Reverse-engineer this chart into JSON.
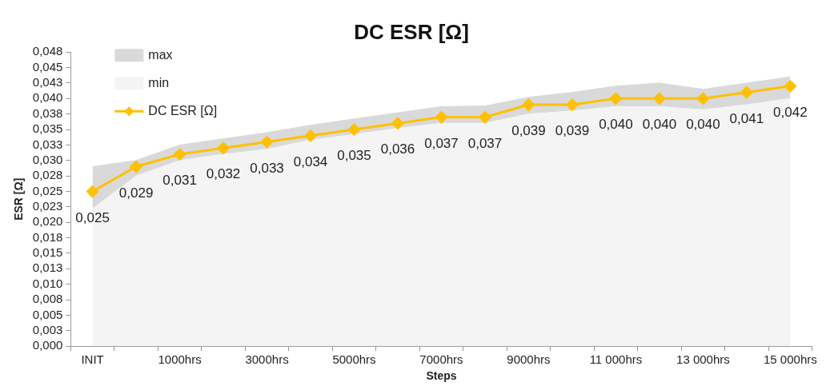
{
  "chart_data": {
    "type": "line",
    "title": "DC ESR [Ω]",
    "xlabel": "Steps",
    "ylabel": "ESR [Ω]",
    "categories": [
      "INIT",
      null,
      "1000hrs",
      null,
      "3000hrs",
      null,
      "5000hrs",
      null,
      "7000hrs",
      null,
      "9000hrs",
      null,
      "11 000hrs",
      null,
      "13 000hrs",
      null,
      "15 000hrs"
    ],
    "ylim": [
      0,
      0.0475
    ],
    "yticks": [
      {
        "value": 0,
        "label": "0,000"
      },
      {
        "value": 0.0025,
        "label": "0,003"
      },
      {
        "value": 0.005,
        "label": "0,005"
      },
      {
        "value": 0.0075,
        "label": "0,008"
      },
      {
        "value": 0.01,
        "label": "0,010"
      },
      {
        "value": 0.0125,
        "label": "0,013"
      },
      {
        "value": 0.015,
        "label": "0,015"
      },
      {
        "value": 0.0175,
        "label": "0,018"
      },
      {
        "value": 0.02,
        "label": "0,020"
      },
      {
        "value": 0.0225,
        "label": "0,023"
      },
      {
        "value": 0.025,
        "label": "0,025"
      },
      {
        "value": 0.0275,
        "label": "0,028"
      },
      {
        "value": 0.03,
        "label": "0,030"
      },
      {
        "value": 0.0325,
        "label": "0,033"
      },
      {
        "value": 0.035,
        "label": "0,035"
      },
      {
        "value": 0.0375,
        "label": "0,038"
      },
      {
        "value": 0.04,
        "label": "0,040"
      },
      {
        "value": 0.0425,
        "label": "0,043"
      },
      {
        "value": 0.045,
        "label": "0,045"
      },
      {
        "value": 0.0475,
        "label": "0,048"
      }
    ],
    "grid": false,
    "legend": "top left",
    "series": [
      {
        "name": "max",
        "type": "area",
        "color": "#d9d9d9",
        "values": [
          0.029,
          0.03,
          0.0325,
          0.0335,
          0.0345,
          0.0357,
          0.0367,
          0.0377,
          0.0387,
          0.0388,
          0.0402,
          0.041,
          0.042,
          0.0425,
          0.0415,
          0.0425,
          0.0435
        ]
      },
      {
        "name": "min",
        "type": "area",
        "color": "#f4f4f4",
        "values": [
          0.0222,
          0.0275,
          0.03,
          0.031,
          0.0318,
          0.0333,
          0.0342,
          0.0352,
          0.036,
          0.036,
          0.0375,
          0.038,
          0.0387,
          0.0387,
          0.0382,
          0.039,
          0.04
        ]
      },
      {
        "name": "DC ESR [Ω]",
        "type": "line",
        "color": "#ffc000",
        "marker": "diamond",
        "values": [
          0.025,
          0.029,
          0.031,
          0.032,
          0.033,
          0.034,
          0.035,
          0.036,
          0.037,
          0.037,
          0.039,
          0.039,
          0.04,
          0.04,
          0.04,
          0.041,
          0.042
        ],
        "value_labels": [
          "0,025",
          "0,029",
          "0,031",
          "0,032",
          "0,033",
          "0,034",
          "0,035",
          "0,036",
          "0,037",
          "0,037",
          "0,039",
          "0,039",
          "0,040",
          "0,040",
          "0,040",
          "0,041",
          "0,042"
        ]
      }
    ]
  }
}
